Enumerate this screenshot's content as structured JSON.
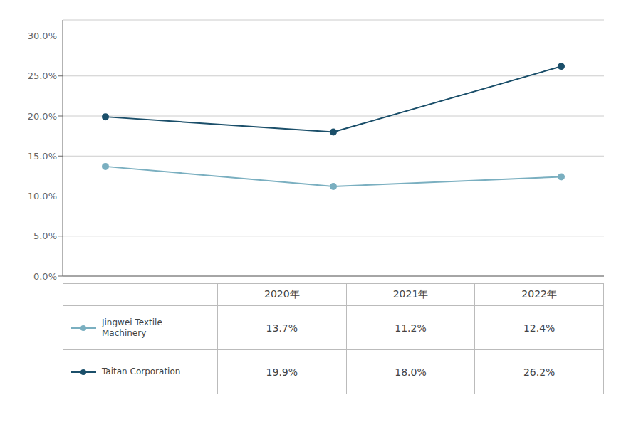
{
  "chart_data": {
    "type": "line",
    "categories": [
      "2020年",
      "2021年",
      "2022年"
    ],
    "series": [
      {
        "name": "Jingwei Textile\nMachinery",
        "color": "#7aafc0",
        "marker": "circle",
        "values": [
          13.7,
          11.2,
          12.4
        ],
        "value_labels": [
          "13.7%",
          "11.2%",
          "12.4%"
        ]
      },
      {
        "name": "Taitan Corporation",
        "color": "#1b4f6a",
        "marker": "circle",
        "values": [
          19.9,
          18.0,
          26.2
        ],
        "value_labels": [
          "19.9%",
          "18.0%",
          "26.2%"
        ]
      }
    ],
    "ylim": [
      0,
      32
    ],
    "yticks": [
      {
        "value": 0,
        "label": "0.0%"
      },
      {
        "value": 5,
        "label": "5.0%"
      },
      {
        "value": 10,
        "label": "10.0%"
      },
      {
        "value": 15,
        "label": "15.0%"
      },
      {
        "value": 20,
        "label": "20.0%"
      },
      {
        "value": 25,
        "label": "25.0%"
      },
      {
        "value": 30,
        "label": "30.0%"
      }
    ],
    "grid": true,
    "tick_labels": "y"
  }
}
